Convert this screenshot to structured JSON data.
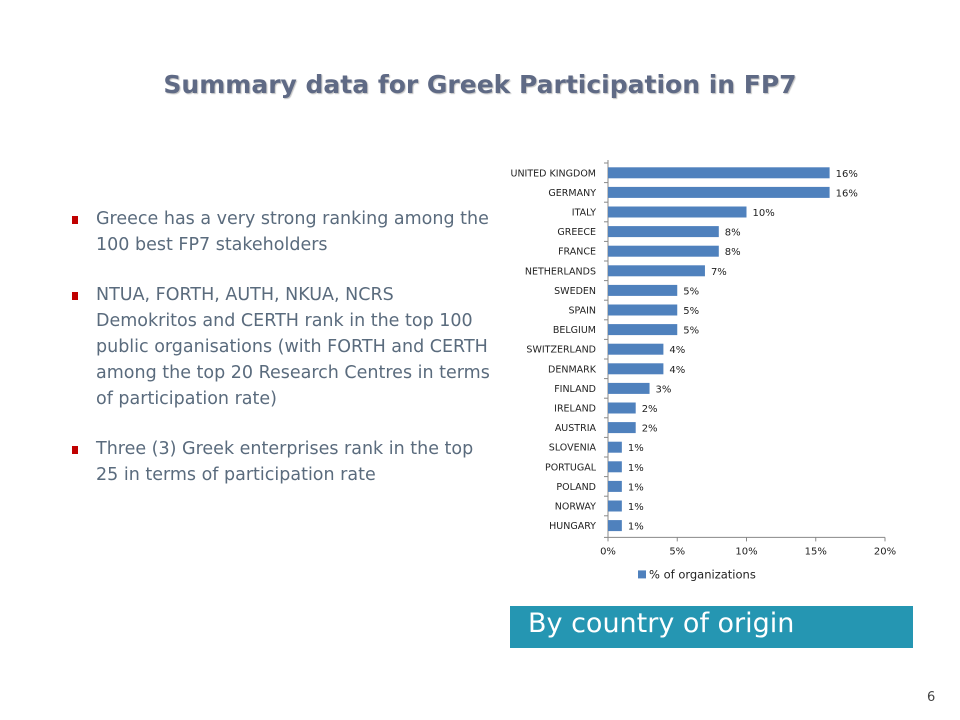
{
  "slide": {
    "title": "Summary data for Greek Participation in FP7",
    "bullets": [
      "Greece has a very strong ranking among the 100 best FP7 stakeholders",
      "NTUA, FORTH, AUTH, NKUA, NCRS Demokritos and CERTH rank in the top 100 public organisations (with FORTH and CERTH among the top 20 Research Centres in terms of participation rate)",
      "Three  (3) Greek  enterprises rank in the top 25  in terms of participation rate"
    ],
    "caption": "By country of origin",
    "page_number": "6",
    "bullet_color": "#c00000",
    "caption_bg": "#2596b2"
  },
  "chart_data": {
    "type": "bar",
    "orientation": "horizontal",
    "categories": [
      "UNITED KINGDOM",
      "GERMANY",
      "ITALY",
      "GREECE",
      "FRANCE",
      "NETHERLANDS",
      "SWEDEN",
      "SPAIN",
      "BELGIUM",
      "SWITZERLAND",
      "DENMARK",
      "FINLAND",
      "IRELAND",
      "AUSTRIA",
      "SLOVENIA",
      "PORTUGAL",
      "POLAND",
      "NORWAY",
      "HUNGARY"
    ],
    "series": [
      {
        "name": "% of organizations",
        "values": [
          16,
          16,
          10,
          8,
          8,
          7,
          5,
          5,
          5,
          4,
          4,
          3,
          2,
          2,
          1,
          1,
          1,
          1,
          1
        ],
        "labels": [
          "16%",
          "16%",
          "10%",
          "8%",
          "8%",
          "7%",
          "5%",
          "5%",
          "5%",
          "4%",
          "4%",
          "3%",
          "2%",
          "2%",
          "1%",
          "1%",
          "1%",
          "1%",
          "1%"
        ],
        "color": "#4f81bd"
      }
    ],
    "xlim": [
      0,
      20
    ],
    "xticks": [
      "0%",
      "5%",
      "10%",
      "15%",
      "20%"
    ],
    "grid": false,
    "legend": "bottom"
  }
}
